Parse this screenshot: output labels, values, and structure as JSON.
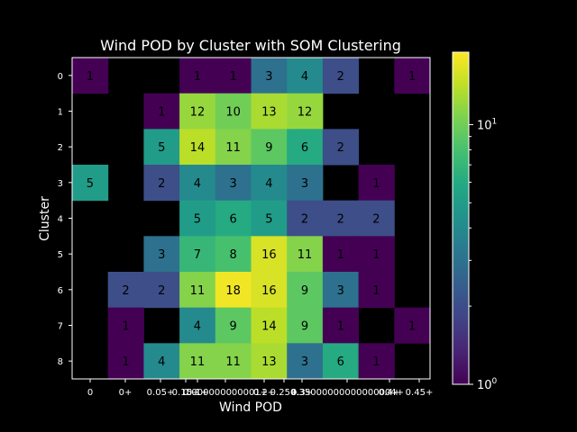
{
  "chart_data": {
    "type": "heatmap",
    "title": "Wind POD by Cluster with SOM Clustering",
    "xlabel": "Wind POD",
    "ylabel": "Cluster",
    "x_tick_labels": [
      "0",
      "0+",
      "0.05+",
      "0.15+",
      "0.1+",
      "0.000000000001+",
      "0.2+",
      "0.25+",
      "0.3+",
      "0.35000000000000004+",
      "0.4+",
      "0.45+"
    ],
    "x_tick_labels_note_hidden_overlap": true,
    "y_tick_labels": [
      "0",
      "1",
      "2",
      "3",
      "4",
      "5",
      "6",
      "7",
      "8"
    ],
    "columns": 10,
    "rows": 9,
    "values": [
      [
        1,
        null,
        null,
        1,
        1,
        3,
        4,
        2,
        null,
        1
      ],
      [
        null,
        null,
        1,
        12,
        10,
        13,
        12,
        null,
        null,
        null
      ],
      [
        null,
        null,
        5,
        14,
        11,
        9,
        6,
        2,
        null,
        null
      ],
      [
        5,
        null,
        2,
        4,
        3,
        4,
        3,
        null,
        1,
        null
      ],
      [
        null,
        null,
        null,
        5,
        6,
        5,
        2,
        2,
        2,
        null
      ],
      [
        null,
        null,
        3,
        7,
        8,
        16,
        11,
        1,
        1,
        null
      ],
      [
        null,
        2,
        2,
        11,
        18,
        16,
        9,
        3,
        1,
        null
      ],
      [
        null,
        1,
        null,
        4,
        9,
        14,
        9,
        1,
        null,
        1
      ],
      [
        null,
        1,
        4,
        11,
        11,
        13,
        3,
        6,
        1,
        null
      ]
    ],
    "color_scale": "log",
    "colormap": "viridis",
    "colorbar_range": [
      1,
      19
    ],
    "colorbar_tick_labels": [
      "10^0",
      "10^1"
    ],
    "background": "#000000",
    "grid": false
  }
}
